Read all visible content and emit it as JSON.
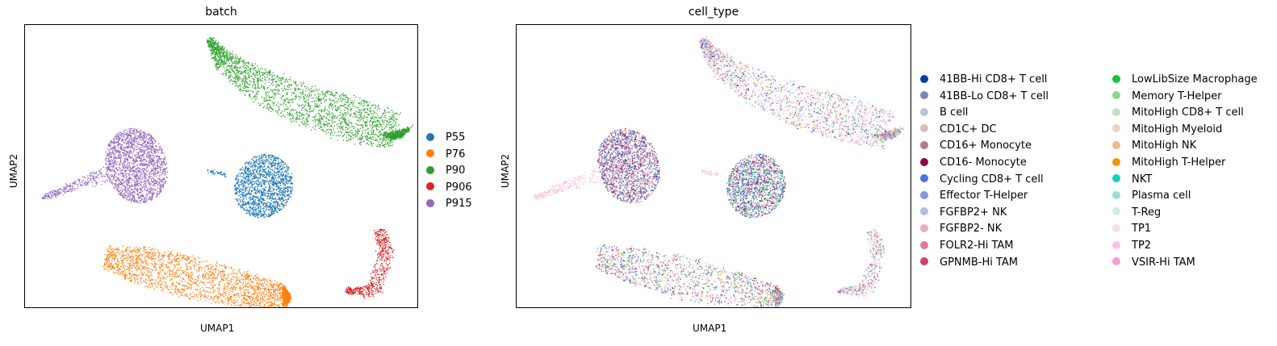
{
  "chart_data": [
    {
      "type": "scatter",
      "title": "batch",
      "xlabel": "UMAP1",
      "ylabel": "UMAP2",
      "ticks": "none",
      "grid": false,
      "legend_placement": "right",
      "legend": [
        {
          "label": "P55",
          "color": "#1f77b4"
        },
        {
          "label": "P76",
          "color": "#ff7f0e"
        },
        {
          "label": "P90",
          "color": "#2ca02c"
        },
        {
          "label": "P906",
          "color": "#d62728"
        },
        {
          "label": "P915",
          "color": "#9467bd"
        }
      ]
    },
    {
      "type": "scatter",
      "title": "cell_type",
      "xlabel": "UMAP1",
      "ylabel": "UMAP2",
      "ticks": "none",
      "grid": false,
      "legend_placement": "right",
      "legend": [
        {
          "label": "41BB-Hi CD8+ T cell",
          "color": "#023fa5"
        },
        {
          "label": "41BB-Lo CD8+ T cell",
          "color": "#7d87b9"
        },
        {
          "label": "B cell",
          "color": "#bec1d4"
        },
        {
          "label": "CD1C+ DC",
          "color": "#d6bcc0"
        },
        {
          "label": "CD16+ Monocyte",
          "color": "#bb7784"
        },
        {
          "label": "CD16- Monocyte",
          "color": "#8e063b"
        },
        {
          "label": "Cycling CD8+ T cell",
          "color": "#4a6fe3"
        },
        {
          "label": "Effector T-Helper",
          "color": "#8595e1"
        },
        {
          "label": "FGFBP2+ NK",
          "color": "#b5bbe3"
        },
        {
          "label": "FGFBP2- NK",
          "color": "#e6afb9"
        },
        {
          "label": "FOLR2-Hi TAM",
          "color": "#e07b91"
        },
        {
          "label": "GPNMB-Hi TAM",
          "color": "#d33f6a"
        },
        {
          "label": "LowLibSize Macrophage",
          "color": "#11c638"
        },
        {
          "label": "Memory T-Helper",
          "color": "#8dd593"
        },
        {
          "label": "MitoHigh CD8+ T cell",
          "color": "#c6dec7"
        },
        {
          "label": "MitoHigh Myeloid",
          "color": "#ead3c6"
        },
        {
          "label": "MitoHigh NK",
          "color": "#f0b98d"
        },
        {
          "label": "MitoHigh T-Helper",
          "color": "#ef9708"
        },
        {
          "label": "NKT",
          "color": "#0fcfc0"
        },
        {
          "label": "Plasma cell",
          "color": "#9cded6"
        },
        {
          "label": "T-Reg",
          "color": "#d5eae7"
        },
        {
          "label": "TP1",
          "color": "#f3e1eb"
        },
        {
          "label": "TP2",
          "color": "#f6c4e1"
        },
        {
          "label": "VSIR-Hi TAM",
          "color": "#f79cd4"
        }
      ]
    }
  ]
}
